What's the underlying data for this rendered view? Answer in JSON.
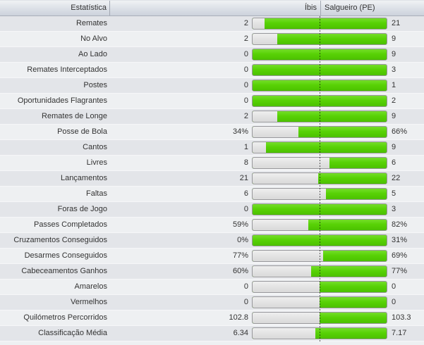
{
  "header": {
    "stat_col": "Estatística",
    "home_col": "Íbis",
    "away_col": "Salgueiro (PE)"
  },
  "colors": {
    "bar_green": "#58d206",
    "bar_gray": "#e3e3e3",
    "bar_border": "#97979b",
    "row_dark": "#e3e5e9",
    "row_light": "#eef0f2",
    "header_gradient_bottom": "#ccd2dc",
    "text": "#333333"
  },
  "rows": [
    {
      "label": "Remates",
      "home": "2",
      "away": "21"
    },
    {
      "label": "No Alvo",
      "home": "2",
      "away": "9"
    },
    {
      "label": "Ao Lado",
      "home": "0",
      "away": "9"
    },
    {
      "label": "Remates Interceptados",
      "home": "0",
      "away": "3"
    },
    {
      "label": "Postes",
      "home": "0",
      "away": "1"
    },
    {
      "label": "Oportunidades Flagrantes",
      "home": "0",
      "away": "2"
    },
    {
      "label": "Remates de Longe",
      "home": "2",
      "away": "9"
    },
    {
      "label": "Posse de Bola",
      "home": "34%",
      "away": "66%"
    },
    {
      "label": "Cantos",
      "home": "1",
      "away": "9"
    },
    {
      "label": "Livres",
      "home": "8",
      "away": "6"
    },
    {
      "label": "Lançamentos",
      "home": "21",
      "away": "22"
    },
    {
      "label": "Faltas",
      "home": "6",
      "away": "5"
    },
    {
      "label": "Foras de Jogo",
      "home": "0",
      "away": "3"
    },
    {
      "label": "Passes Completados",
      "home": "59%",
      "away": "82%"
    },
    {
      "label": "Cruzamentos Conseguidos",
      "home": "0%",
      "away": "31%"
    },
    {
      "label": "Desarmes Conseguidos",
      "home": "77%",
      "away": "69%"
    },
    {
      "label": "Cabeceamentos Ganhos",
      "home": "60%",
      "away": "77%"
    },
    {
      "label": "Amarelos",
      "home": "0",
      "away": "0"
    },
    {
      "label": "Vermelhos",
      "home": "0",
      "away": "0"
    },
    {
      "label": "Quilómetros Percorridos",
      "home": "102.8",
      "away": "103.3"
    },
    {
      "label": "Classificação Média",
      "home": "6.34",
      "away": "7.17"
    }
  ],
  "chart_data": {
    "type": "bar",
    "title": "Estatística",
    "orientation": "horizontal-paired-proportion",
    "categories": [
      "Remates",
      "No Alvo",
      "Ao Lado",
      "Remates Interceptados",
      "Postes",
      "Oportunidades Flagrantes",
      "Remates de Longe",
      "Posse de Bola",
      "Cantos",
      "Livres",
      "Lançamentos",
      "Faltas",
      "Foras de Jogo",
      "Passes Completados",
      "Cruzamentos Conseguidos",
      "Desarmes Conseguidos",
      "Cabeceamentos Ganhos",
      "Amarelos",
      "Vermelhos",
      "Quilómetros Percorridos",
      "Classificação Média"
    ],
    "series": [
      {
        "name": "Íbis",
        "values": [
          2,
          2,
          0,
          0,
          0,
          0,
          2,
          34,
          1,
          8,
          21,
          6,
          0,
          59,
          0,
          77,
          60,
          0,
          0,
          102.8,
          6.34
        ],
        "display": [
          "2",
          "2",
          "0",
          "0",
          "0",
          "0",
          "2",
          "34%",
          "1",
          "8",
          "21",
          "6",
          "0",
          "59%",
          "0%",
          "77%",
          "60%",
          "0",
          "0",
          "102.8",
          "6.34"
        ],
        "color": "#e3e3e3"
      },
      {
        "name": "Salgueiro (PE)",
        "values": [
          21,
          9,
          9,
          3,
          1,
          2,
          9,
          66,
          9,
          6,
          22,
          5,
          3,
          82,
          31,
          69,
          77,
          0,
          0,
          103.3,
          7.17
        ],
        "display": [
          "21",
          "9",
          "9",
          "3",
          "1",
          "2",
          "9",
          "66%",
          "9",
          "6",
          "22",
          "5",
          "3",
          "82%",
          "31%",
          "69%",
          "77%",
          "0",
          "0",
          "103.3",
          "7.17"
        ],
        "color": "#58d206"
      }
    ],
    "notes": "Each row is one proportion bar: gray segment = Íbis share of combined total, green segment = Salgueiro (PE) share; vertical dotted line marks the 50% midpoint; when both values are 0 the bar splits 50/50."
  }
}
